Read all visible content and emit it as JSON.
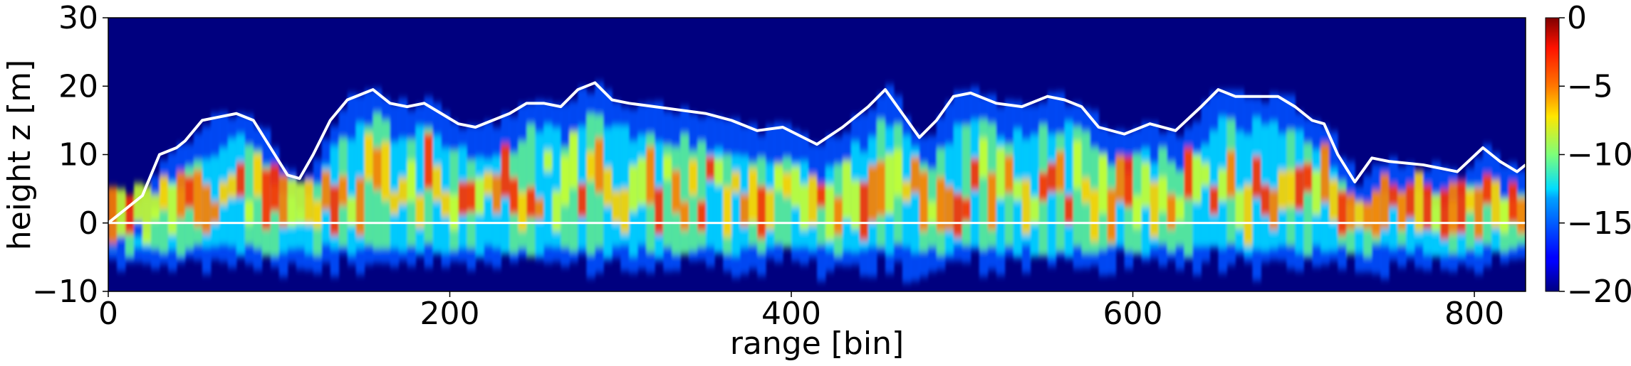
{
  "chart_data": {
    "type": "heatmap",
    "xlabel": "range [bin]",
    "ylabel": "height z [m]",
    "xlim": [
      0,
      830
    ],
    "ylim": [
      -10,
      30
    ],
    "x_ticks": [
      "0",
      "200",
      "400",
      "600",
      "800"
    ],
    "y_ticks": [
      "−10",
      "0",
      "10",
      "20",
      "30"
    ],
    "colorbar": {
      "ticks": [
        "0",
        "−5",
        "−10",
        "−15",
        "−20"
      ],
      "range": [
        -20,
        0
      ],
      "colormap": "jet"
    },
    "background_color": "#00007f",
    "ground_line": {
      "y": 0,
      "color": "#ffffff"
    },
    "canopy_profile": {
      "color": "#ffffff",
      "x": [
        0,
        10,
        20,
        30,
        40,
        45,
        55,
        65,
        75,
        85,
        95,
        105,
        112,
        120,
        130,
        140,
        155,
        165,
        175,
        185,
        195,
        205,
        215,
        225,
        235,
        245,
        255,
        265,
        275,
        285,
        295,
        305,
        320,
        335,
        350,
        365,
        380,
        395,
        415,
        430,
        445,
        455,
        465,
        475,
        485,
        495,
        505,
        520,
        535,
        550,
        560,
        570,
        580,
        595,
        610,
        625,
        640,
        650,
        660,
        670,
        685,
        695,
        705,
        712,
        720,
        730,
        740,
        750,
        770,
        790,
        805,
        815,
        825,
        830
      ],
      "y": [
        0,
        2,
        4,
        10,
        11,
        12,
        15,
        15.5,
        16,
        15,
        11,
        7,
        6.5,
        10,
        15,
        18,
        19.5,
        17.5,
        17,
        17.5,
        16,
        14.5,
        14,
        15,
        16,
        17.5,
        17.5,
        17,
        19.5,
        20.5,
        18,
        17.5,
        17,
        16.5,
        16,
        15,
        13.5,
        14,
        11.5,
        14,
        17,
        19.5,
        16,
        12.5,
        15,
        18.5,
        19,
        17.5,
        17,
        18.5,
        18,
        17,
        14,
        13,
        14.5,
        13.5,
        17,
        19.5,
        18.5,
        18.5,
        18.5,
        17,
        15,
        14.5,
        10,
        6,
        9.5,
        9,
        8.5,
        7.5,
        11,
        9,
        7.5,
        8.5
      ]
    }
  }
}
